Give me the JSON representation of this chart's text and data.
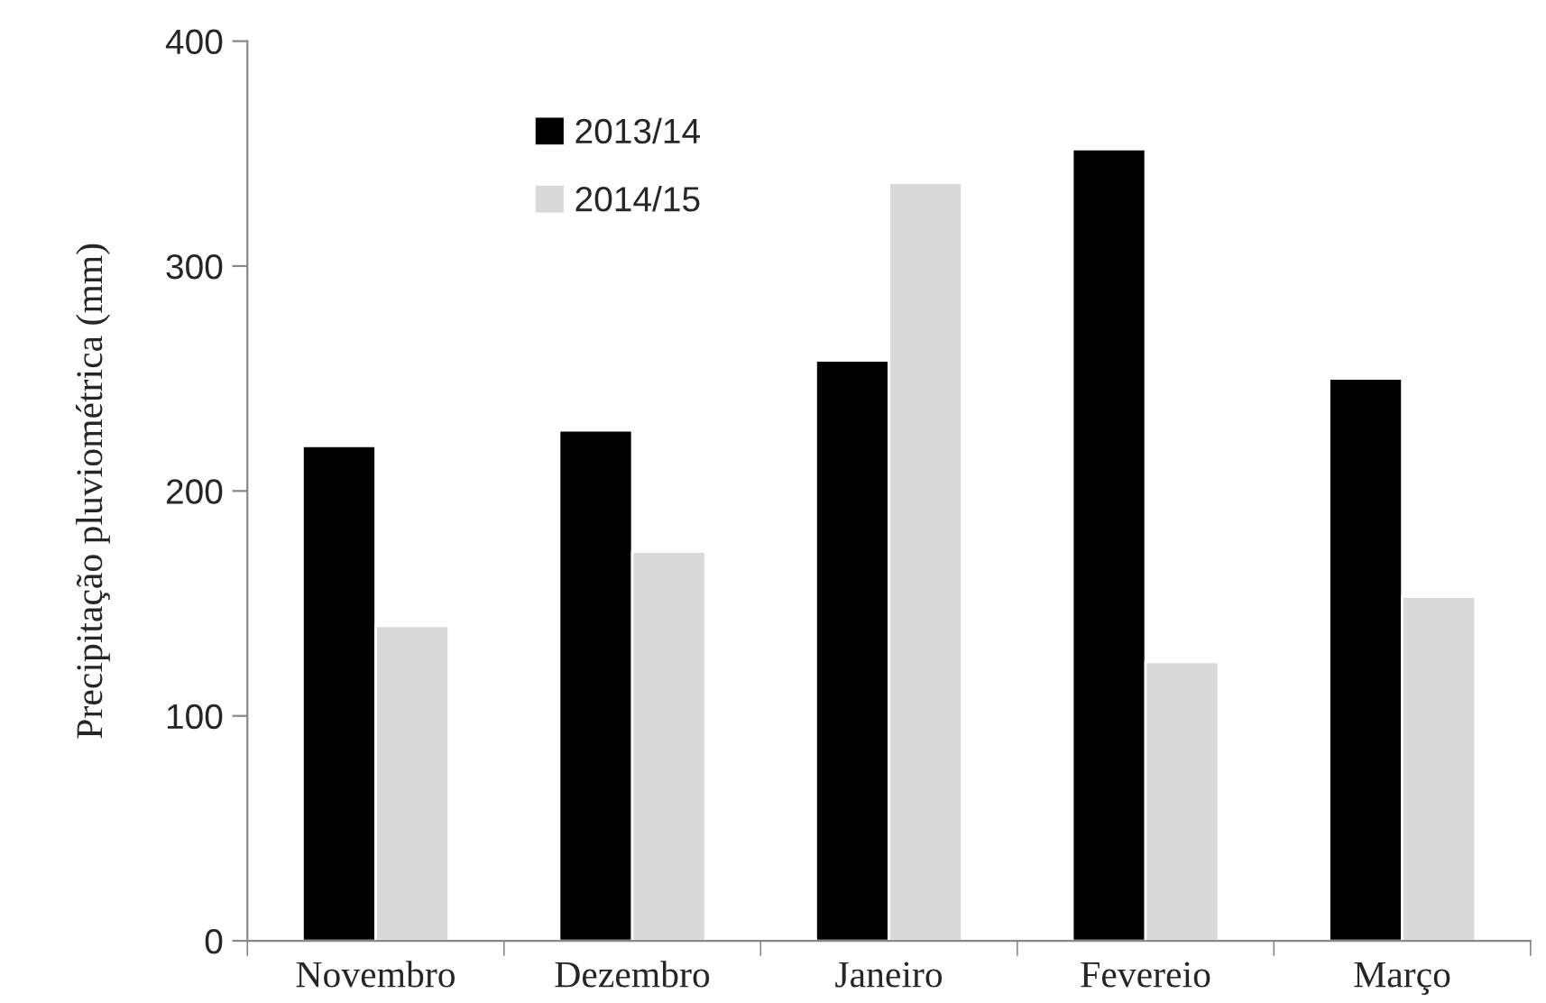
{
  "chart_data": {
    "type": "bar",
    "ylabel": "Precipitação pluviométrica (mm)",
    "categories": [
      "Novembro",
      "Dezembro",
      "Janeiro",
      "Fevereio",
      "Março"
    ],
    "series": [
      {
        "name": "2013/14",
        "color": "#000000",
        "values": [
          220,
          227,
          258,
          352,
          250
        ]
      },
      {
        "name": "2014/15",
        "color": "#d9d9d9",
        "values": [
          140,
          173,
          337,
          124,
          153
        ]
      }
    ],
    "ylim": [
      0,
      400
    ],
    "yticks": [
      0,
      100,
      200,
      300,
      400
    ],
    "grid": false,
    "legend": "top left"
  }
}
